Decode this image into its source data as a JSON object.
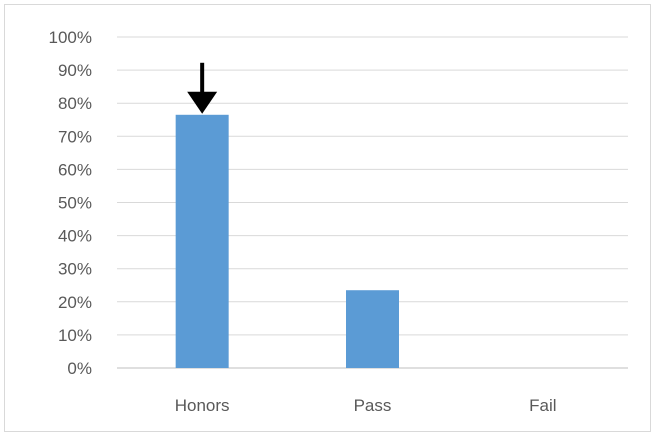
{
  "chart_data": {
    "type": "bar",
    "title": "",
    "xlabel": "",
    "ylabel": "",
    "categories": [
      "Honors",
      "Pass",
      "Fail"
    ],
    "values": [
      0.765,
      0.235,
      0
    ],
    "ylim": [
      0,
      1
    ],
    "y_ticks": [
      "0%",
      "10%",
      "20%",
      "30%",
      "40%",
      "50%",
      "60%",
      "70%",
      "80%",
      "90%",
      "100%"
    ],
    "grid": true,
    "legend": "none",
    "bar_color": "#5b9bd5",
    "annotations": [
      {
        "type": "arrow",
        "target_category": "Honors",
        "direction": "down",
        "color": "#000000"
      }
    ]
  }
}
